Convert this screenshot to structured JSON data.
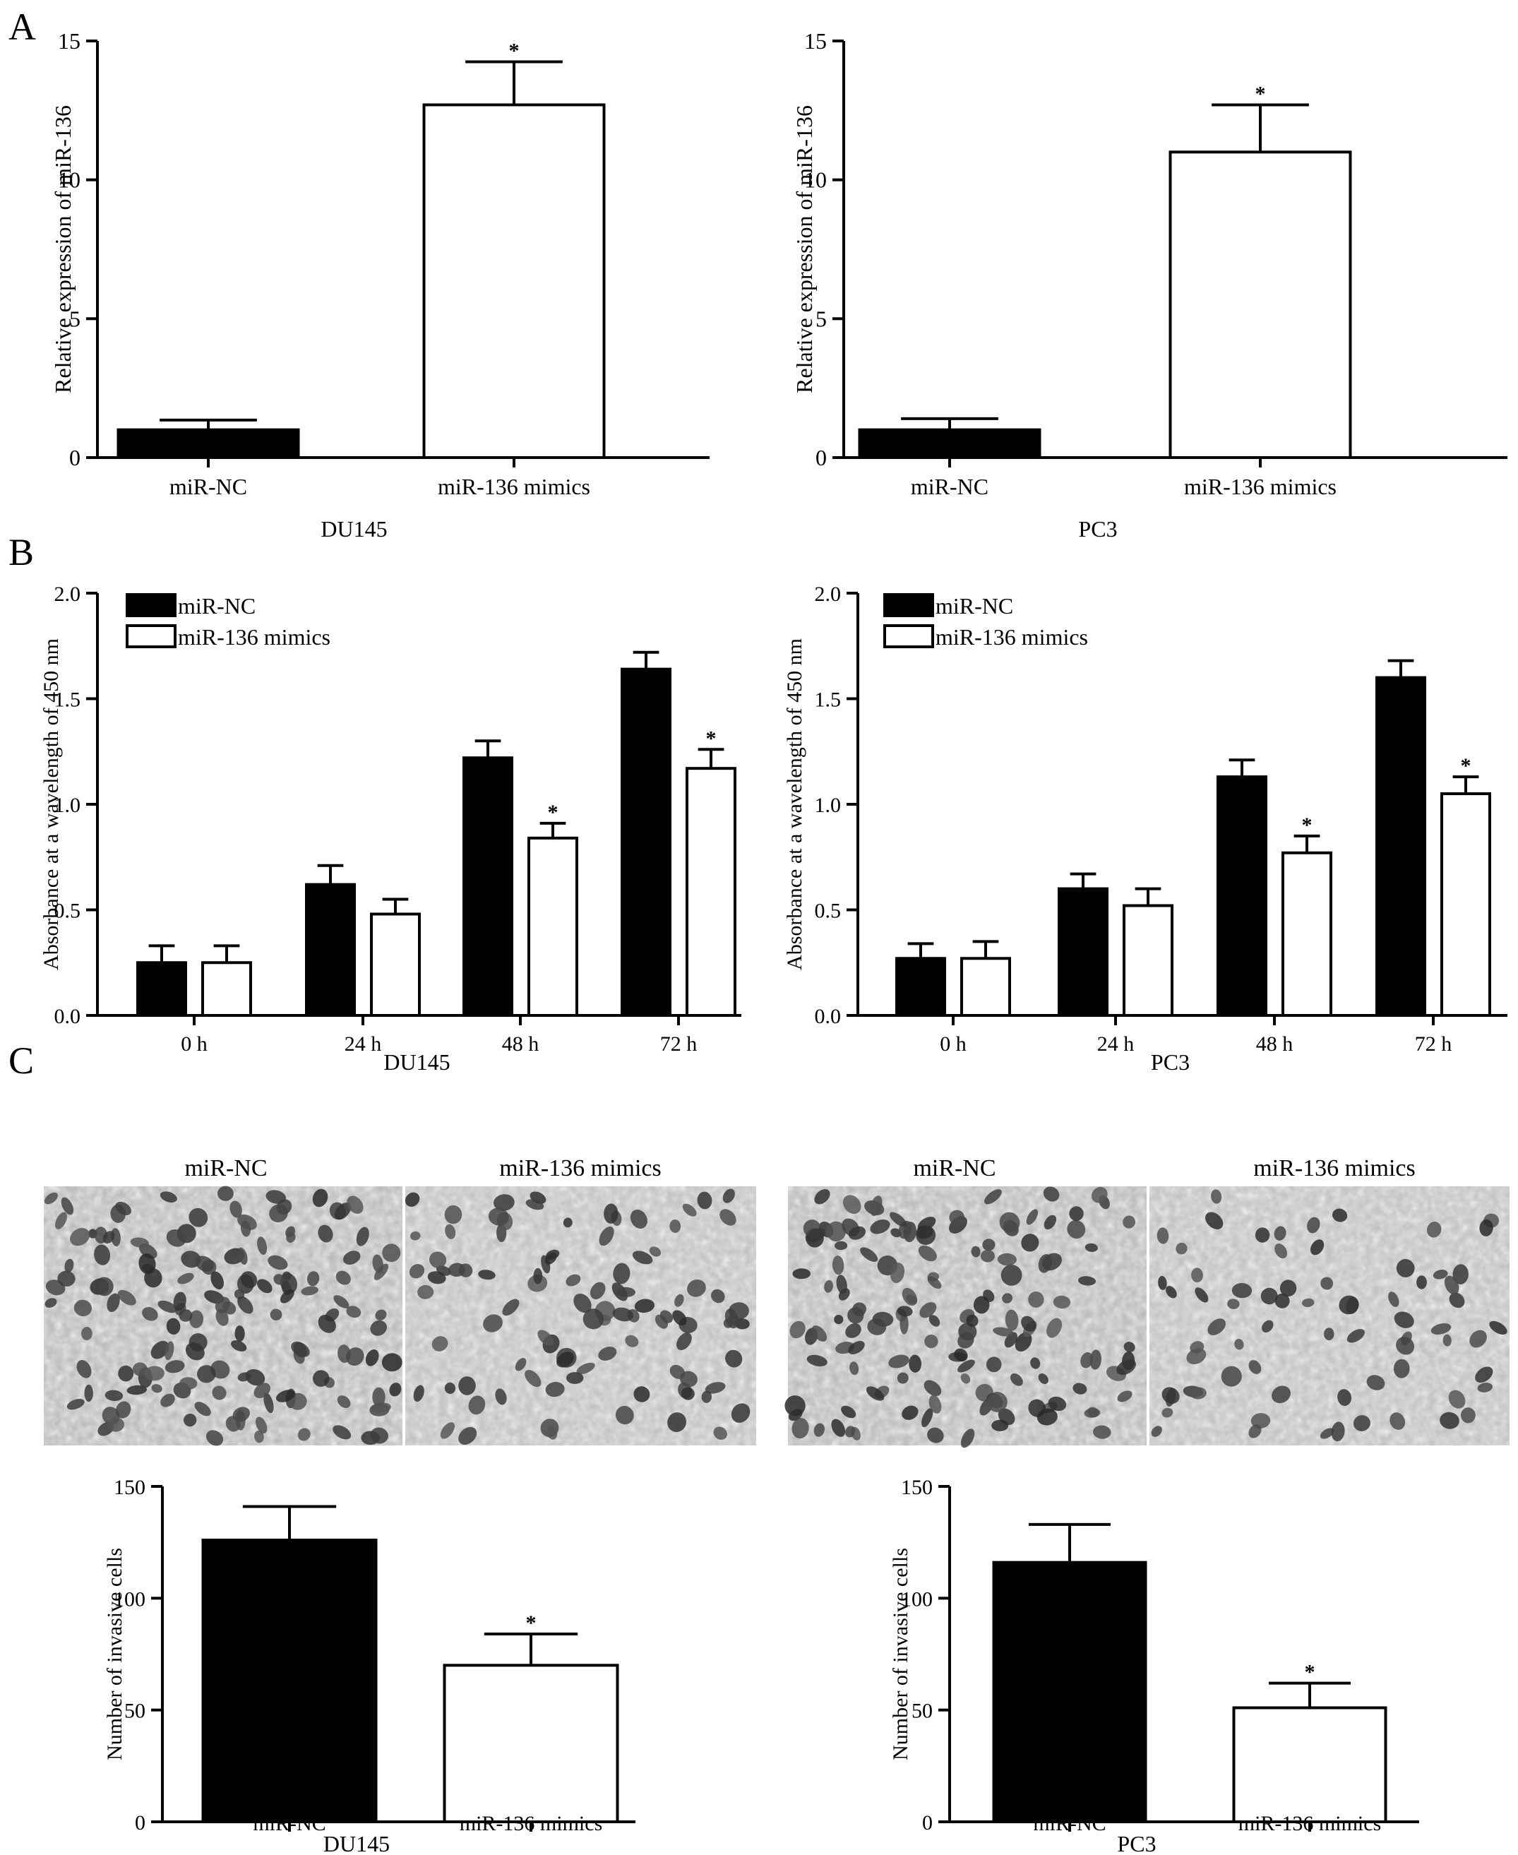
{
  "panels": [
    {
      "letter": "A"
    },
    {
      "letter": "B"
    },
    {
      "letter": "C"
    }
  ],
  "photo_labels": {
    "du145": [
      "miR-NC",
      "miR-136 mimics"
    ],
    "pc3": [
      "miR-NC",
      "miR-136 mimics"
    ]
  },
  "chart_data": [
    {
      "type": "bar",
      "categories": [
        "miR-NC",
        "miR-136 mimics"
      ],
      "series": [
        {
          "values": [
            1.0,
            12.7
          ],
          "errors": [
            0.35,
            1.55
          ],
          "colors": [
            "#000000",
            "#ffffff"
          ]
        }
      ],
      "significant": [
        false,
        true
      ],
      "title": "",
      "xlabel": "DU145",
      "ylabel": "Relative expression of miR-136",
      "ylim": [
        0,
        15
      ],
      "yticks": [
        0,
        5,
        10,
        15
      ],
      "grid": false
    },
    {
      "type": "bar",
      "categories": [
        "miR-NC",
        "miR-136 mimics"
      ],
      "series": [
        {
          "values": [
            1.0,
            11.0
          ],
          "errors": [
            0.4,
            1.7
          ],
          "colors": [
            "#000000",
            "#ffffff"
          ]
        }
      ],
      "significant": [
        false,
        true
      ],
      "title": "",
      "xlabel": "PC3",
      "ylabel": "Relative expression of miR-136",
      "ylim": [
        0,
        15
      ],
      "yticks": [
        0,
        5,
        10,
        15
      ],
      "grid": false
    },
    {
      "type": "bar",
      "categories": [
        "0 h",
        "24 h",
        "48 h",
        "72 h"
      ],
      "series": [
        {
          "name": "miR-NC",
          "color": "#000000",
          "values": [
            0.25,
            0.62,
            1.22,
            1.64
          ],
          "errors": [
            0.08,
            0.09,
            0.08,
            0.08
          ],
          "significant": [
            false,
            false,
            false,
            false
          ]
        },
        {
          "name": "miR-136 mimics",
          "color": "#ffffff",
          "values": [
            0.25,
            0.48,
            0.84,
            1.17
          ],
          "errors": [
            0.08,
            0.07,
            0.07,
            0.09
          ],
          "significant": [
            false,
            false,
            true,
            true
          ]
        }
      ],
      "title": "",
      "xlabel": "DU145",
      "ylabel": "Absorbance at a wavelength of 450 nm",
      "ylim": [
        0,
        2.0
      ],
      "yticks": [
        0.0,
        0.5,
        1.0,
        1.5,
        2.0
      ],
      "ytick_labels": [
        "0.0",
        "0.5",
        "1.0",
        "1.5",
        "2.0"
      ],
      "legend": "top-left",
      "grid": false
    },
    {
      "type": "bar",
      "categories": [
        "0 h",
        "24 h",
        "48 h",
        "72 h"
      ],
      "series": [
        {
          "name": "miR-NC",
          "color": "#000000",
          "values": [
            0.27,
            0.6,
            1.13,
            1.6
          ],
          "errors": [
            0.07,
            0.07,
            0.08,
            0.08
          ],
          "significant": [
            false,
            false,
            false,
            false
          ]
        },
        {
          "name": "miR-136 mimics",
          "color": "#ffffff",
          "values": [
            0.27,
            0.52,
            0.77,
            1.05
          ],
          "errors": [
            0.08,
            0.08,
            0.08,
            0.08
          ],
          "significant": [
            false,
            false,
            true,
            true
          ]
        }
      ],
      "title": "",
      "xlabel": "PC3",
      "ylabel": "Absorbance at a wavelength of 450 nm",
      "ylim": [
        0,
        2.0
      ],
      "yticks": [
        0.0,
        0.5,
        1.0,
        1.5,
        2.0
      ],
      "ytick_labels": [
        "0.0",
        "0.5",
        "1.0",
        "1.5",
        "2.0"
      ],
      "legend": "top-left",
      "grid": false
    },
    {
      "type": "bar",
      "categories": [
        "miR-NC",
        "miR-136 mimics"
      ],
      "series": [
        {
          "values": [
            126,
            70
          ],
          "errors": [
            15,
            14
          ],
          "colors": [
            "#000000",
            "#ffffff"
          ]
        }
      ],
      "significant": [
        false,
        true
      ],
      "title": "",
      "xlabel": "DU145",
      "ylabel": "Number of invasive cells",
      "ylim": [
        0,
        150
      ],
      "yticks": [
        0,
        50,
        100,
        150
      ],
      "grid": false
    },
    {
      "type": "bar",
      "categories": [
        "miR-NC",
        "miR-136 mimics"
      ],
      "series": [
        {
          "values": [
            116,
            51
          ],
          "errors": [
            17,
            11
          ],
          "colors": [
            "#000000",
            "#ffffff"
          ]
        }
      ],
      "significant": [
        false,
        true
      ],
      "title": "",
      "xlabel": "PC3",
      "ylabel": "Number of invasive cells",
      "ylim": [
        0,
        150
      ],
      "yticks": [
        0,
        50,
        100,
        150
      ],
      "grid": false
    }
  ]
}
